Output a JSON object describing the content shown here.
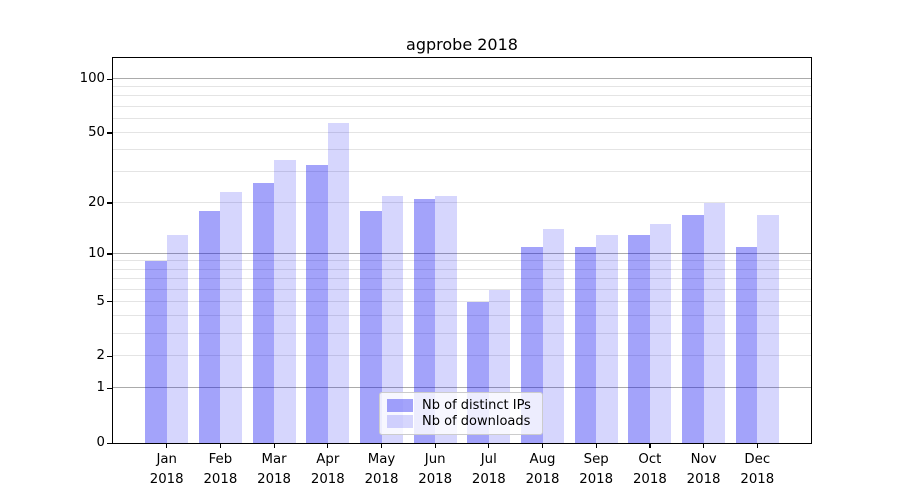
{
  "title": "agprobe 2018",
  "legend": {
    "items": [
      {
        "label": "Nb of distinct IPs"
      },
      {
        "label": "Nb of downloads"
      }
    ]
  },
  "chart_data": {
    "type": "bar",
    "title": "agprobe 2018",
    "categories": [
      "Jan 2018",
      "Feb 2018",
      "Mar 2018",
      "Apr 2018",
      "May 2018",
      "Jun 2018",
      "Jul 2018",
      "Aug 2018",
      "Sep 2018",
      "Oct 2018",
      "Nov 2018",
      "Dec 2018"
    ],
    "series": [
      {
        "name": "Nb of distinct IPs",
        "color": "rgba(0, 0, 240, 0.36)",
        "values": [
          9,
          18,
          26,
          33,
          18,
          21,
          5,
          11,
          11,
          13,
          17,
          11
        ]
      },
      {
        "name": "Nb of downloads",
        "color": "rgba(0, 0, 240, 0.16)",
        "values": [
          13,
          23,
          35,
          57,
          22,
          22,
          6,
          14,
          13,
          15,
          20,
          17
        ]
      }
    ],
    "xlabel": "",
    "ylabel": "",
    "y_scale": "log10(value+1)",
    "ylim": [
      0,
      129
    ],
    "y_ticks": [
      0,
      1,
      2,
      5,
      10,
      20,
      50,
      100
    ],
    "y_tick_labels": [
      "0",
      "1",
      "2",
      "5",
      "10",
      "20",
      "50",
      "100"
    ],
    "grid": true,
    "grid_major_values": [
      1,
      10,
      100
    ],
    "grid_minor_values": [
      2,
      3,
      4,
      5,
      6,
      7,
      8,
      9,
      20,
      30,
      40,
      50,
      60,
      70,
      80,
      90
    ],
    "legend_position": "lower center",
    "colors": {
      "grid_major": "#ababab",
      "grid_minor": "#e4e4e4",
      "axis": "#000000",
      "background": "#ffffff"
    }
  }
}
